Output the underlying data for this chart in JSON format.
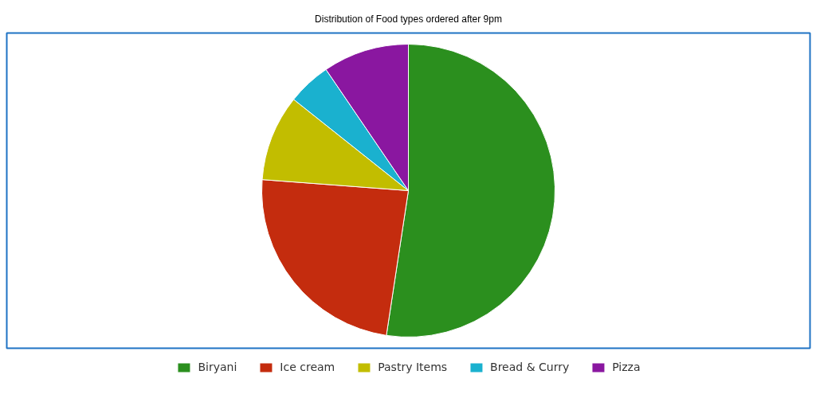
{
  "chart_data": {
    "type": "pie",
    "title": "Distribution of Food types ordered after 9pm",
    "categories": [
      "Biryani",
      "Ice cream",
      "Pastry Items",
      "Bread & Curry",
      "Pizza"
    ],
    "values": [
      52.4,
      23.8,
      9.5,
      4.8,
      9.5
    ],
    "colors": [
      "#2b8f1e",
      "#c42c0e",
      "#c2bd00",
      "#1ab1cf",
      "#8a17a0"
    ],
    "legend": "bottom"
  }
}
